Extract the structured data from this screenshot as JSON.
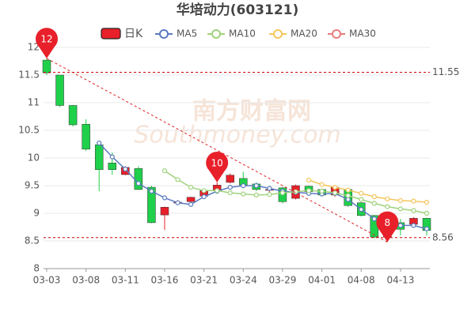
{
  "chart_data": {
    "type": "candlestick",
    "title": "华培动力(603121)",
    "watermark": [
      "南方财富网",
      "Southmoney.com"
    ],
    "candle_name": "日K",
    "up_color": "#e8202a",
    "down_color": "#1fd04a",
    "categories": [
      "03-03",
      null,
      null,
      "03-08",
      null,
      null,
      "03-11",
      null,
      null,
      "03-16",
      null,
      null,
      "03-21",
      null,
      null,
      "03-24",
      null,
      null,
      "03-29",
      null,
      null,
      "04-01",
      null,
      null,
      "04-08",
      null,
      null,
      "04-13",
      null,
      null
    ],
    "open": [
      11.77,
      11.5,
      10.95,
      10.61,
      10.24,
      9.91,
      9.7,
      9.81,
      9.47,
      8.97,
      9.19,
      9.21,
      9.31,
      9.41,
      9.56,
      9.63,
      9.53,
      9.42,
      9.46,
      9.27,
      9.49,
      9.43,
      9.33,
      9.43,
      9.19,
      8.96,
      8.57,
      8.83,
      8.8,
      8.91
    ],
    "close": [
      11.54,
      10.95,
      10.6,
      10.16,
      9.79,
      9.79,
      9.83,
      9.43,
      8.83,
      9.11,
      9.2,
      9.29,
      9.41,
      9.51,
      9.69,
      9.51,
      9.43,
      9.43,
      9.21,
      9.5,
      9.39,
      9.33,
      9.47,
      9.14,
      8.96,
      8.57,
      8.74,
      8.71,
      8.91,
      8.69
    ],
    "high": [
      11.8,
      11.5,
      10.96,
      10.7,
      10.25,
      10.1,
      9.85,
      9.85,
      9.5,
      9.12,
      9.24,
      9.3,
      9.43,
      9.56,
      9.72,
      9.75,
      9.56,
      9.46,
      9.48,
      9.52,
      9.5,
      9.45,
      9.5,
      9.45,
      9.2,
      8.97,
      8.8,
      8.9,
      8.93,
      8.92
    ],
    "low": [
      11.5,
      10.92,
      10.57,
      10.13,
      9.4,
      9.7,
      9.69,
      9.42,
      8.82,
      8.7,
      9.17,
      9.15,
      9.3,
      9.39,
      9.54,
      9.45,
      9.4,
      9.3,
      9.18,
      9.25,
      9.36,
      9.3,
      9.3,
      9.12,
      8.94,
      8.55,
      8.48,
      8.6,
      8.75,
      8.6
    ],
    "series": [
      {
        "name": "MA5",
        "color": "#5b7bc0",
        "values": [
          null,
          null,
          null,
          null,
          10.27,
          10.02,
          9.8,
          9.54,
          9.4,
          9.28,
          9.19,
          9.16,
          9.3,
          9.4,
          9.47,
          9.5,
          9.5,
          9.45,
          9.4,
          9.38,
          9.36,
          9.35,
          9.36,
          9.25,
          9.07,
          8.9,
          8.82,
          8.78,
          8.78,
          8.72
        ]
      },
      {
        "name": "MA10",
        "color": "#9fd27c",
        "values": [
          null,
          null,
          null,
          null,
          null,
          null,
          null,
          null,
          null,
          9.77,
          9.61,
          9.47,
          9.41,
          9.41,
          9.37,
          9.35,
          9.33,
          9.34,
          9.37,
          9.39,
          9.41,
          9.4,
          9.37,
          9.32,
          9.25,
          9.18,
          9.12,
          9.08,
          9.05,
          9.0
        ]
      },
      {
        "name": "MA20",
        "color": "#f3c65c",
        "values": [
          null,
          null,
          null,
          null,
          null,
          null,
          null,
          null,
          null,
          null,
          null,
          null,
          null,
          null,
          null,
          null,
          null,
          null,
          null,
          null,
          9.6,
          9.52,
          9.47,
          9.42,
          9.36,
          9.3,
          9.26,
          9.23,
          9.22,
          9.2
        ]
      },
      {
        "name": "MA30",
        "color": "#e87c7c",
        "values": [
          null,
          null,
          null,
          null,
          null,
          null,
          null,
          null,
          null,
          null,
          null,
          null,
          null,
          null,
          null,
          null,
          null,
          null,
          null,
          null,
          null,
          null,
          null,
          null,
          null,
          null,
          null,
          null,
          null,
          null
        ]
      }
    ],
    "markers": [
      {
        "x": 0,
        "value": 11.8,
        "label": "12"
      },
      {
        "x": 13,
        "value": 9.56,
        "label": "10"
      },
      {
        "x": 26,
        "value": 8.48,
        "label": "8"
      }
    ],
    "hlines": [
      11.55,
      8.56
    ],
    "ylim": [
      8,
      12
    ],
    "yticks": [
      8,
      8.5,
      9,
      9.5,
      10,
      10.5,
      11,
      11.5,
      12
    ],
    "grid": true
  }
}
